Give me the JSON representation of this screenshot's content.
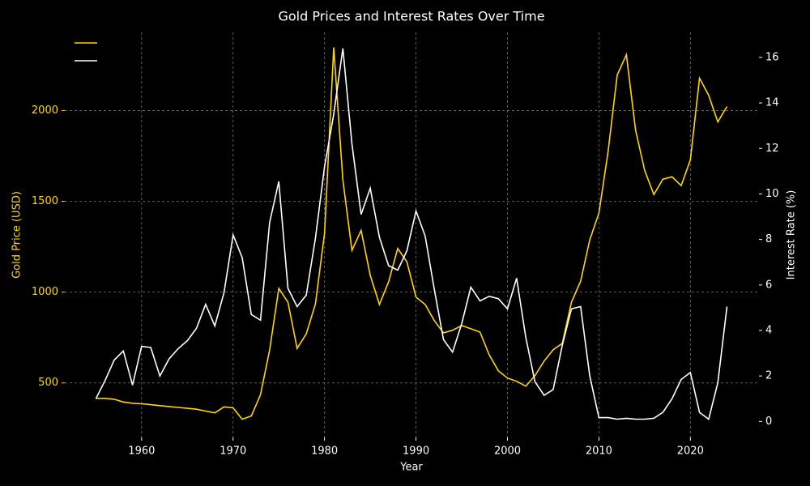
{
  "chart_data": {
    "type": "line",
    "title": "Gold Prices and Interest Rates Over Time",
    "x_label": "Year",
    "y_label": "Gold Price (USD)",
    "y2_label": "Interest Rate (%)",
    "x": [
      1955,
      1956,
      1957,
      1958,
      1959,
      1960,
      1961,
      1962,
      1963,
      1964,
      1965,
      1966,
      1967,
      1968,
      1969,
      1970,
      1971,
      1972,
      1973,
      1974,
      1975,
      1976,
      1977,
      1978,
      1979,
      1980,
      1981,
      1982,
      1983,
      1984,
      1985,
      1986,
      1987,
      1988,
      1989,
      1990,
      1991,
      1992,
      1993,
      1994,
      1995,
      1996,
      1997,
      1998,
      1999,
      2000,
      2001,
      2002,
      2003,
      2004,
      2005,
      2006,
      2007,
      2008,
      2009,
      2010,
      2011,
      2012,
      2013,
      2014,
      2015,
      2016,
      2017,
      2018,
      2019,
      2020,
      2021,
      2022,
      2023,
      2024
    ],
    "series": [
      {
        "color": "#ffd700",
        "axis": "y",
        "values": [
          415,
          415,
          410,
          395,
          388,
          385,
          380,
          375,
          370,
          365,
          360,
          355,
          345,
          335,
          368,
          363,
          300,
          318,
          435,
          682,
          1020,
          945,
          690,
          770,
          935,
          1325,
          2347,
          1617,
          1230,
          1340,
          1092,
          932,
          1056,
          1240,
          1167,
          972,
          932,
          843,
          776,
          790,
          816,
          798,
          780,
          655,
          567,
          527,
          509,
          482,
          540,
          620,
          682,
          718,
          945,
          1060,
          1288,
          1435,
          1773,
          2196,
          2307,
          1893,
          1670,
          1537,
          1622,
          1635,
          1586,
          1728,
          2178,
          2084,
          1937,
          2022
        ]
      },
      {
        "color": "#ffffff",
        "axis": "y2",
        "values": [
          1.0,
          1.8,
          2.7,
          3.1,
          1.6,
          3.3,
          3.25,
          2.0,
          2.75,
          3.2,
          3.55,
          4.1,
          5.15,
          4.2,
          5.65,
          8.2,
          7.2,
          4.7,
          4.45,
          8.75,
          10.55,
          5.85,
          5.05,
          5.55,
          8.05,
          11.2,
          13.5,
          16.4,
          12.2,
          9.1,
          10.25,
          8.1,
          6.85,
          6.65,
          7.5,
          9.25,
          8.15,
          5.8,
          3.6,
          3.05,
          4.3,
          5.9,
          5.3,
          5.5,
          5.4,
          4.95,
          6.3,
          3.7,
          1.75,
          1.15,
          1.4,
          3.35,
          4.95,
          5.05,
          2.0,
          0.17,
          0.17,
          0.1,
          0.14,
          0.1,
          0.1,
          0.14,
          0.4,
          1.0,
          1.85,
          2.15,
          0.4,
          0.1,
          1.7,
          5.05
        ]
      }
    ],
    "xlim": [
      1951.6,
      2027.5
    ],
    "xticks": [
      1960,
      1970,
      1980,
      1990,
      2000,
      2010,
      2020
    ],
    "ylim": [
      200,
      2430
    ],
    "yticks": [
      500,
      1000,
      1500,
      2000
    ],
    "y2lim": [
      -0.7,
      17.1
    ],
    "y2ticks": [
      0,
      2,
      4,
      6,
      8,
      10,
      12,
      14,
      16
    ],
    "grid": true
  }
}
